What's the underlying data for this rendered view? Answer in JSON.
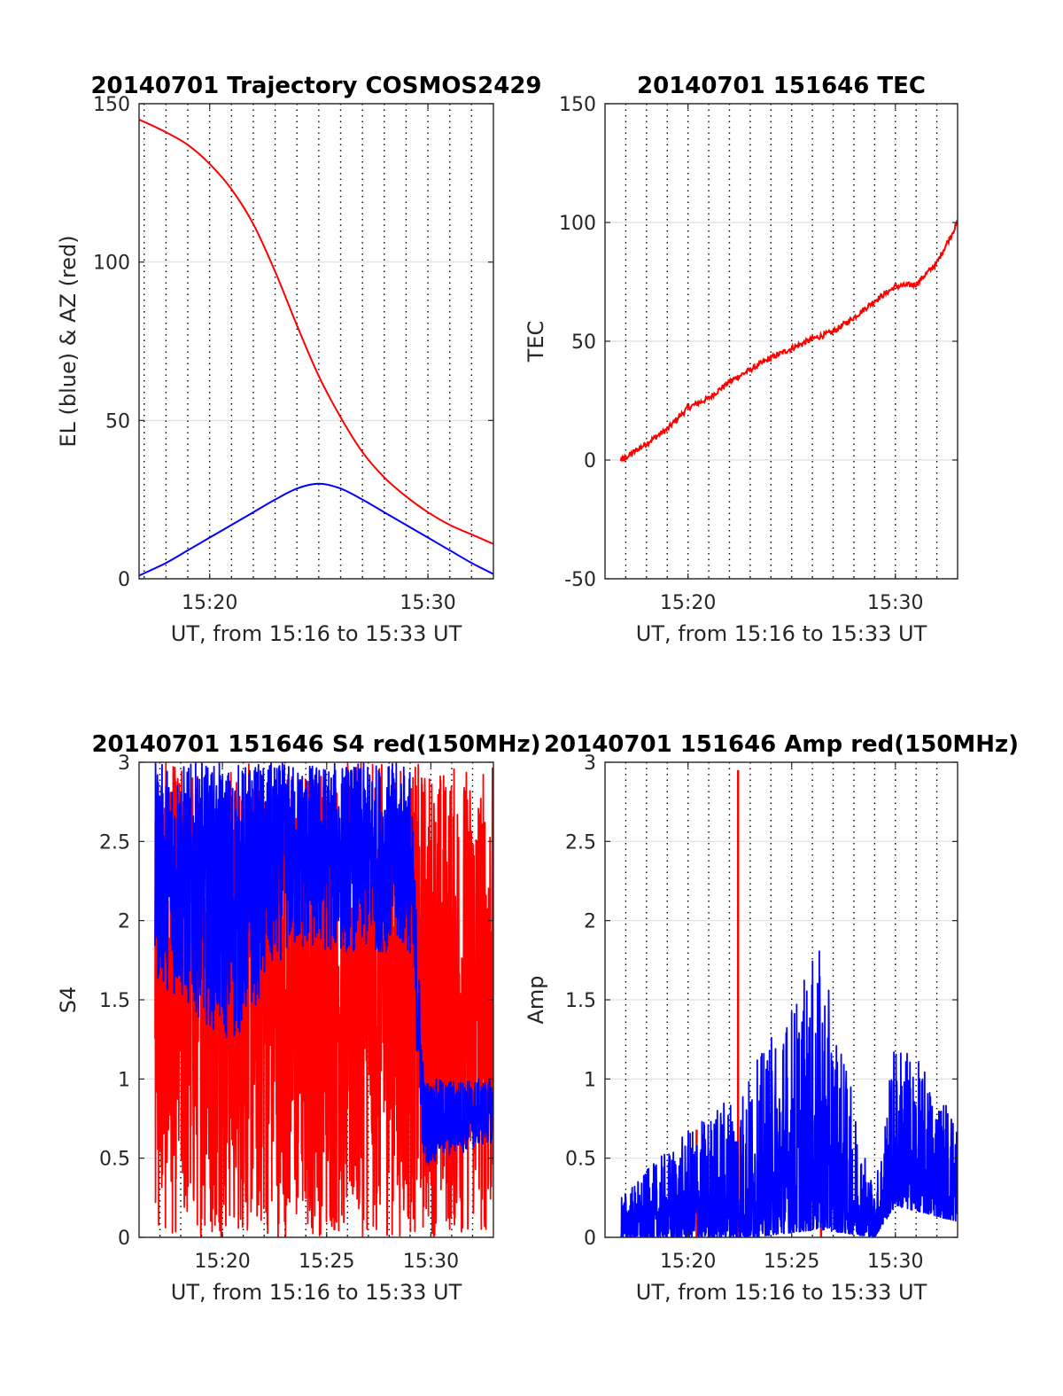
{
  "chart_data": [
    {
      "type": "line",
      "title": "20140701 Trajectory COSMOS2429",
      "xlabel": "UT, from 15:16 to 15:33 UT",
      "ylabel": "EL (blue) & AZ (red)",
      "xlim": [
        "15:16:46",
        "15:33:00"
      ],
      "ylim": [
        0,
        150
      ],
      "yticks": [
        "0",
        "50",
        "100",
        "150"
      ],
      "xticks": [
        {
          "t": "15:20",
          "label": "15:20"
        },
        {
          "t": "15:30",
          "label": "15:30"
        }
      ],
      "grid": true,
      "colors": {
        "blue": "#0000ff",
        "red": "#ff0000"
      },
      "series": [
        {
          "color": "red",
          "x": [
            "15:16:46",
            "15:18:00",
            "15:19:00",
            "15:20:00",
            "15:21:00",
            "15:22:00",
            "15:23:00",
            "15:24:00",
            "15:25:00",
            "15:26:00",
            "15:27:00",
            "15:28:00",
            "15:29:00",
            "15:30:00",
            "15:31:00",
            "15:32:00",
            "15:33:00"
          ],
          "y": [
            145,
            141,
            137,
            131,
            123,
            112,
            97,
            80,
            64,
            51,
            40,
            32,
            26,
            21,
            17,
            14,
            11
          ]
        },
        {
          "color": "blue",
          "x": [
            "15:16:46",
            "15:18:00",
            "15:19:00",
            "15:20:00",
            "15:21:00",
            "15:22:00",
            "15:23:00",
            "15:24:00",
            "15:25:00",
            "15:26:00",
            "15:27:00",
            "15:28:00",
            "15:29:00",
            "15:30:00",
            "15:31:00",
            "15:32:00",
            "15:33:00"
          ],
          "y": [
            1,
            5,
            9,
            13,
            17,
            21,
            25,
            28.5,
            30,
            28.5,
            25,
            21,
            17,
            13,
            9,
            5,
            1.5
          ]
        }
      ]
    },
    {
      "type": "line",
      "title": "20140701 151646 TEC",
      "xlabel": "UT, from 15:16 to 15:33 UT",
      "ylabel": "TEC",
      "xlim": [
        "15:16:00",
        "15:33:00"
      ],
      "ylim": [
        -50,
        150
      ],
      "yticks": [
        "-50",
        "0",
        "50",
        "100",
        "150"
      ],
      "xticks": [
        {
          "t": "15:20",
          "label": "15:20"
        },
        {
          "t": "15:30",
          "label": "15:30"
        }
      ],
      "grid": true,
      "series": [
        {
          "color": "red",
          "x": [
            "15:16:46",
            "15:17:00",
            "15:18:00",
            "15:19:00",
            "15:20:00",
            "15:21:00",
            "15:22:00",
            "15:23:00",
            "15:24:00",
            "15:25:00",
            "15:26:00",
            "15:27:00",
            "15:28:00",
            "15:29:00",
            "15:30:00",
            "15:31:00",
            "15:32:00",
            "15:33:00"
          ],
          "y": [
            0,
            1,
            7,
            13,
            22,
            26,
            33,
            38,
            43,
            47,
            51,
            54,
            60,
            67,
            73,
            74,
            83,
            100
          ]
        }
      ]
    },
    {
      "type": "line",
      "title": "20140701 151646 S4 red(150MHz)",
      "xlabel": "UT, from 15:16 to 15:33 UT",
      "ylabel": "S4",
      "xlim": [
        "15:16:00",
        "15:33:00"
      ],
      "ylim": [
        0,
        3
      ],
      "yticks": [
        "0",
        "0.5",
        "1",
        "1.5",
        "2",
        "2.5",
        "3"
      ],
      "xticks": [
        {
          "t": "15:20",
          "label": "15:20"
        },
        {
          "t": "15:25",
          "label": "15:25"
        },
        {
          "t": "15:30",
          "label": "15:30"
        }
      ],
      "grid": true,
      "series": [
        {
          "color": "red",
          "style": "noisy",
          "x_range": [
            "15:16:46",
            "15:33:00"
          ],
          "envelope": [
            {
              "t": "15:17:00",
              "min": 0,
              "max": 3
            },
            {
              "t": "15:29:30",
              "min": 0,
              "max": 3
            },
            {
              "t": "15:33:00",
              "min": 0,
              "max": 3
            }
          ]
        },
        {
          "color": "blue",
          "style": "noisy",
          "x_range": [
            "15:16:46",
            "15:33:00"
          ],
          "envelope": [
            {
              "t": "15:17:00",
              "min": 1.6,
              "max": 3
            },
            {
              "t": "15:20:30",
              "min": 1.2,
              "max": 3
            },
            {
              "t": "15:23:00",
              "min": 1.8,
              "max": 3
            },
            {
              "t": "15:29:00",
              "min": 1.8,
              "max": 3
            },
            {
              "t": "15:29:40",
              "min": 0.45,
              "max": 1.0
            },
            {
              "t": "15:33:00",
              "min": 0.6,
              "max": 1.0
            }
          ]
        }
      ]
    },
    {
      "type": "line",
      "title": "20140701 151646 Amp red(150MHz)",
      "xlabel": "UT, from 15:16 to 15:33 UT",
      "ylabel": "Amp",
      "xlim": [
        "15:16:00",
        "15:33:00"
      ],
      "ylim": [
        0,
        3
      ],
      "yticks": [
        "0",
        "0.5",
        "1",
        "1.5",
        "2",
        "2.5",
        "3"
      ],
      "xticks": [
        {
          "t": "15:20",
          "label": "15:20"
        },
        {
          "t": "15:25",
          "label": "15:25"
        },
        {
          "t": "15:30",
          "label": "15:30"
        }
      ],
      "grid": true,
      "series": [
        {
          "color": "red",
          "style": "spikes",
          "spikes": [
            {
              "t": "15:20:25",
              "y": 0.68
            },
            {
              "t": "15:22:25",
              "y": 2.95
            },
            {
              "t": "15:26:25",
              "y": 0.1
            }
          ]
        },
        {
          "color": "blue",
          "style": "noisy",
          "x_range": [
            "15:16:46",
            "15:33:00"
          ],
          "envelope": [
            {
              "t": "15:17:00",
              "min": 0,
              "max": 0.3
            },
            {
              "t": "15:23:00",
              "min": 0,
              "max": 1.05
            },
            {
              "t": "15:26:20",
              "min": 0.05,
              "max": 1.82
            },
            {
              "t": "15:29:00",
              "min": 0,
              "max": 0.3
            },
            {
              "t": "15:30:00",
              "min": 0.2,
              "max": 1.3
            },
            {
              "t": "15:33:00",
              "min": 0.1,
              "max": 0.8
            }
          ]
        }
      ]
    }
  ]
}
